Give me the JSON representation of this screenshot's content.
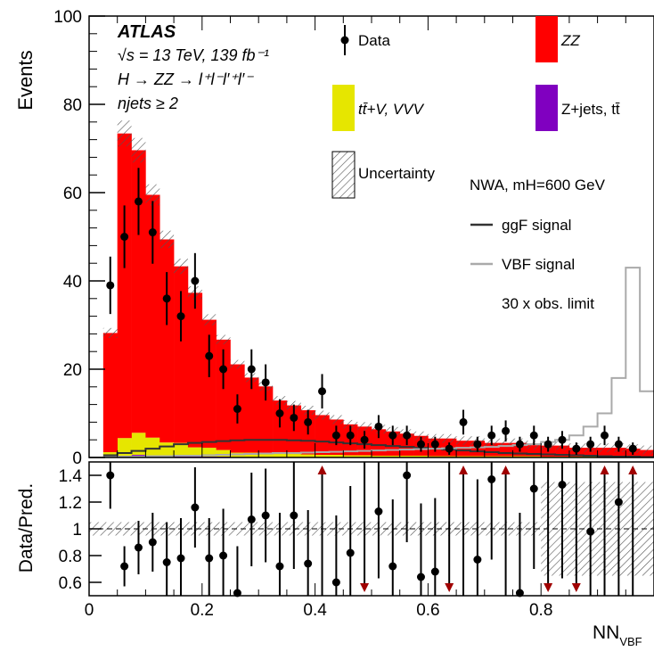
{
  "chart_data": [
    {
      "type": "bar",
      "panel": "main",
      "ylabel": "Events",
      "ylim": [
        0,
        100
      ],
      "xlim": [
        0,
        1
      ],
      "yticks": [
        "0",
        "20",
        "40",
        "60",
        "80",
        "100"
      ],
      "bin_edges": [
        0.025,
        0.05,
        0.075,
        0.1,
        0.125,
        0.15,
        0.175,
        0.2,
        0.225,
        0.25,
        0.275,
        0.3,
        0.325,
        0.35,
        0.375,
        0.4,
        0.425,
        0.45,
        0.475,
        0.5,
        0.525,
        0.55,
        0.575,
        0.6,
        0.625,
        0.65,
        0.675,
        0.7,
        0.725,
        0.75,
        0.775,
        0.8,
        0.825,
        0.85,
        0.875,
        0.9,
        0.925,
        0.95,
        0.975,
        1.0
      ],
      "series": [
        {
          "name": "ZZ",
          "color": "#ff0000",
          "values": [
            27,
            69,
            64,
            55,
            46,
            40,
            35,
            29,
            25,
            20,
            17,
            15,
            12,
            11,
            10,
            9,
            8,
            7,
            6.5,
            6,
            5.5,
            5,
            4.5,
            4,
            4,
            3.5,
            3.5,
            3,
            3,
            3,
            2.5,
            2.5,
            2.5,
            2,
            2,
            2,
            2,
            1.8,
            1.5
          ]
        },
        {
          "name": "tt̄+V, VVV",
          "color": "#e6e600",
          "values": [
            1,
            4,
            5,
            4,
            3,
            3,
            2,
            2,
            1.5,
            1,
            1,
            1,
            0.8,
            0.7,
            0.6,
            0.5,
            0.5,
            0.4,
            0.4,
            0.3,
            0.3,
            0.3,
            0.3,
            0.2,
            0.2,
            0.2,
            0.2,
            0.2,
            0.2,
            0.2,
            0.2,
            0.1,
            0.1,
            0.1,
            0.1,
            0.1,
            0.1,
            0.1,
            0.1
          ]
        },
        {
          "name": "Z+jets, tt̄",
          "color": "#8000c0",
          "values": [
            0.2,
            0.4,
            0.6,
            0.5,
            0.4,
            0.3,
            0.3,
            0.2,
            0.2,
            0.1,
            0.1,
            0.1,
            0.1,
            0.1,
            0.1,
            0.1,
            0.1,
            0.1,
            0.1,
            0.1,
            0.1,
            0.1,
            0.1,
            0.1,
            0.1,
            0.1,
            0.1,
            0.1,
            0.1,
            0.1,
            0.1,
            0.1,
            0.1,
            0.1,
            0.1,
            0.1,
            0.1,
            0.1,
            0.1
          ]
        }
      ],
      "signal_lines": [
        {
          "name": "ggF signal",
          "color": "#333333",
          "values": [
            0.5,
            1,
            1.5,
            2,
            2.5,
            3,
            3.3,
            3.5,
            3.7,
            3.9,
            4,
            4,
            4,
            3.9,
            3.8,
            3.6,
            3.4,
            3.2,
            3,
            2.8,
            2.6,
            2.4,
            2.2,
            2,
            1.8,
            1.6,
            1.4,
            1.2,
            1,
            0.9,
            0.8,
            0.7,
            0.6,
            0.5,
            0.4,
            0.3,
            0.2,
            0.2,
            0.1
          ]
        },
        {
          "name": "VBF signal",
          "color": "#aaaaaa",
          "values": [
            0.1,
            0.2,
            0.2,
            0.3,
            0.3,
            0.4,
            0.4,
            0.5,
            0.6,
            0.7,
            0.8,
            0.9,
            1,
            1,
            1.1,
            1.2,
            1.3,
            1.4,
            1.5,
            1.6,
            1.7,
            1.8,
            1.9,
            2,
            2.1,
            2.2,
            2.3,
            2.4,
            2.6,
            2.8,
            3,
            3.5,
            4,
            5,
            7,
            10,
            18,
            43,
            15
          ]
        }
      ],
      "data_points": {
        "name": "Data",
        "x": [
          0.0375,
          0.0625,
          0.0875,
          0.1125,
          0.1375,
          0.1625,
          0.1875,
          0.2125,
          0.2375,
          0.2625,
          0.2875,
          0.3125,
          0.3375,
          0.3625,
          0.3875,
          0.4125,
          0.4375,
          0.4625,
          0.4875,
          0.5125,
          0.5375,
          0.5625,
          0.5875,
          0.6125,
          0.6375,
          0.6625,
          0.6875,
          0.7125,
          0.7375,
          0.7625,
          0.7875,
          0.8125,
          0.8375,
          0.8625,
          0.8875,
          0.9125,
          0.9375,
          0.9625
        ],
        "y": [
          39,
          50,
          58,
          51,
          36,
          32,
          40,
          23,
          20,
          11,
          20,
          17,
          10,
          9,
          8,
          15,
          5,
          5,
          4,
          7,
          5,
          5,
          3,
          3,
          2,
          8,
          3,
          5,
          6,
          3,
          5,
          3,
          4,
          2,
          3,
          5,
          3,
          2
        ],
        "yerr": [
          6.5,
          7.1,
          7.6,
          7.1,
          6,
          5.7,
          6.3,
          4.8,
          4.5,
          3.3,
          4.5,
          4.1,
          3.2,
          3,
          2.8,
          3.9,
          2.2,
          2.2,
          2,
          2.6,
          2.2,
          2.2,
          1.7,
          1.7,
          1.4,
          2.8,
          1.7,
          2.2,
          2.4,
          1.7,
          2.2,
          1.7,
          2,
          1.4,
          1.7,
          2.2,
          1.7,
          1.4
        ]
      },
      "legend": {
        "position": "top-right",
        "entries": [
          "Data",
          "ZZ",
          "tt̄+V, VVV",
          "Z+jets, tt̄",
          "Uncertainty",
          "ggF signal",
          "VBF signal"
        ]
      },
      "annotations": {
        "atlas": "ATLAS",
        "energy": "√s = 13 TeV, 139 fb⁻¹",
        "process": "H → ZZ → l⁺l⁻l′⁺l′⁻",
        "njets": "njets ≥ 2",
        "nwa": "NWA, mH=600 GeV",
        "limit": "30 x obs. limit"
      }
    },
    {
      "type": "scatter",
      "panel": "ratio",
      "ylabel": "Data/Pred.",
      "xlabel": "NN_VBF",
      "ylim": [
        0.5,
        1.5
      ],
      "xlim": [
        0,
        1
      ],
      "yticks": [
        "0.6",
        "0.8",
        "1",
        "1.2",
        "1.4"
      ],
      "xticks": [
        "0",
        "0.2",
        "0.4",
        "0.6",
        "0.8"
      ],
      "x": [
        0.0375,
        0.0625,
        0.0875,
        0.1125,
        0.1375,
        0.1625,
        0.1875,
        0.2125,
        0.2375,
        0.2625,
        0.2875,
        0.3125,
        0.3375,
        0.3625,
        0.3875,
        0.4375,
        0.4625,
        0.5125,
        0.5375,
        0.5625,
        0.5875,
        0.6125,
        0.6875,
        0.7125,
        0.7625,
        0.7875,
        0.8375,
        0.8875,
        0.9375
      ],
      "y": [
        1.4,
        0.72,
        0.86,
        0.9,
        0.75,
        0.78,
        1.16,
        0.78,
        0.8,
        0.52,
        1.07,
        1.1,
        0.72,
        1.1,
        0.74,
        0.6,
        0.82,
        1.13,
        0.72,
        1.4,
        0.64,
        0.68,
        0.77,
        1.37,
        0.52,
        1.3,
        1.33,
        0.98,
        1.2
      ],
      "yerr": [
        0.25,
        0.15,
        0.2,
        0.22,
        0.3,
        0.3,
        0.3,
        0.3,
        0.35,
        0.35,
        0.35,
        0.35,
        0.4,
        0.4,
        0.4,
        0.5,
        0.5,
        0.5,
        0.5,
        0.5,
        0.55,
        0.55,
        0.6,
        0.6,
        0.6,
        0.6,
        0.7,
        0.7,
        0.7
      ],
      "arrows_up_x": [
        0.4125,
        0.6625,
        0.7375,
        0.9125,
        0.9625
      ],
      "arrows_down_x": [
        0.4875,
        0.6375,
        0.8125,
        0.8625
      ]
    }
  ]
}
